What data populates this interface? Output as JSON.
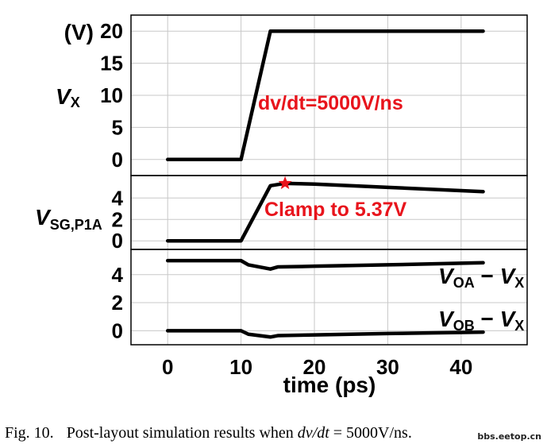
{
  "chart_data": [
    {
      "type": "line",
      "panel": "top",
      "ylabel_unit": "(V)",
      "ylabel_var": "V",
      "ylabel_sub": "X",
      "ylim": [
        -2.5,
        22.5
      ],
      "yticks": [
        0,
        5,
        10,
        15,
        20
      ],
      "xlim": [
        -5,
        49
      ],
      "grid": true,
      "series": [
        {
          "x": [
            0,
            10,
            14,
            43
          ],
          "y": [
            0,
            0,
            20,
            20
          ]
        }
      ],
      "annotations": [
        {
          "text": "dv/dt=5000V/ns",
          "x": 13,
          "y": 8.9
        }
      ]
    },
    {
      "type": "line",
      "panel": "middle",
      "ylabel_var": "V",
      "ylabel_sub": "SG,P1A",
      "ylim": [
        -0.8,
        6.1
      ],
      "yticks": [
        0,
        2,
        4
      ],
      "xlim": [
        -5,
        49
      ],
      "grid": true,
      "series": [
        {
          "x": [
            0,
            10,
            14,
            16,
            20,
            30,
            43
          ],
          "y": [
            0,
            0,
            5.15,
            5.37,
            5.3,
            5.0,
            4.6
          ]
        }
      ],
      "marker": {
        "x": 16,
        "y": 5.37,
        "shape": "star",
        "color": "#e8141c"
      },
      "annotations": [
        {
          "text": "Clamp to 5.37V",
          "x": 13.5,
          "y": 3.6
        }
      ]
    },
    {
      "type": "line",
      "panel": "bottom",
      "xlabel": "time (ps)",
      "xlim": [
        -5,
        49
      ],
      "xticks": [
        0,
        10,
        20,
        30,
        40
      ],
      "ylim": [
        -1.0,
        5.8
      ],
      "yticks": [
        0,
        2,
        4
      ],
      "grid": true,
      "series": [
        {
          "label_var1": "V",
          "label_sub1": "OA",
          "label_var2": "V",
          "label_sub2": "X",
          "x": [
            0,
            10,
            11,
            14,
            15,
            20,
            30,
            43
          ],
          "y": [
            5.0,
            5.0,
            4.7,
            4.4,
            4.55,
            4.6,
            4.7,
            4.85
          ]
        },
        {
          "label_var1": "V",
          "label_sub1": "OB",
          "label_var2": "V",
          "label_sub2": "X",
          "x": [
            0,
            10,
            11,
            14,
            15,
            20,
            30,
            43
          ],
          "y": [
            0,
            0,
            -0.25,
            -0.45,
            -0.35,
            -0.3,
            -0.2,
            -0.1
          ]
        }
      ]
    }
  ],
  "caption": {
    "label": "Fig. 10.",
    "text_before": "Post-layout simulation results when ",
    "math": "dv/dt",
    "text_after": " = 5000V/ns."
  },
  "watermark": "bbs.eetop.cn"
}
